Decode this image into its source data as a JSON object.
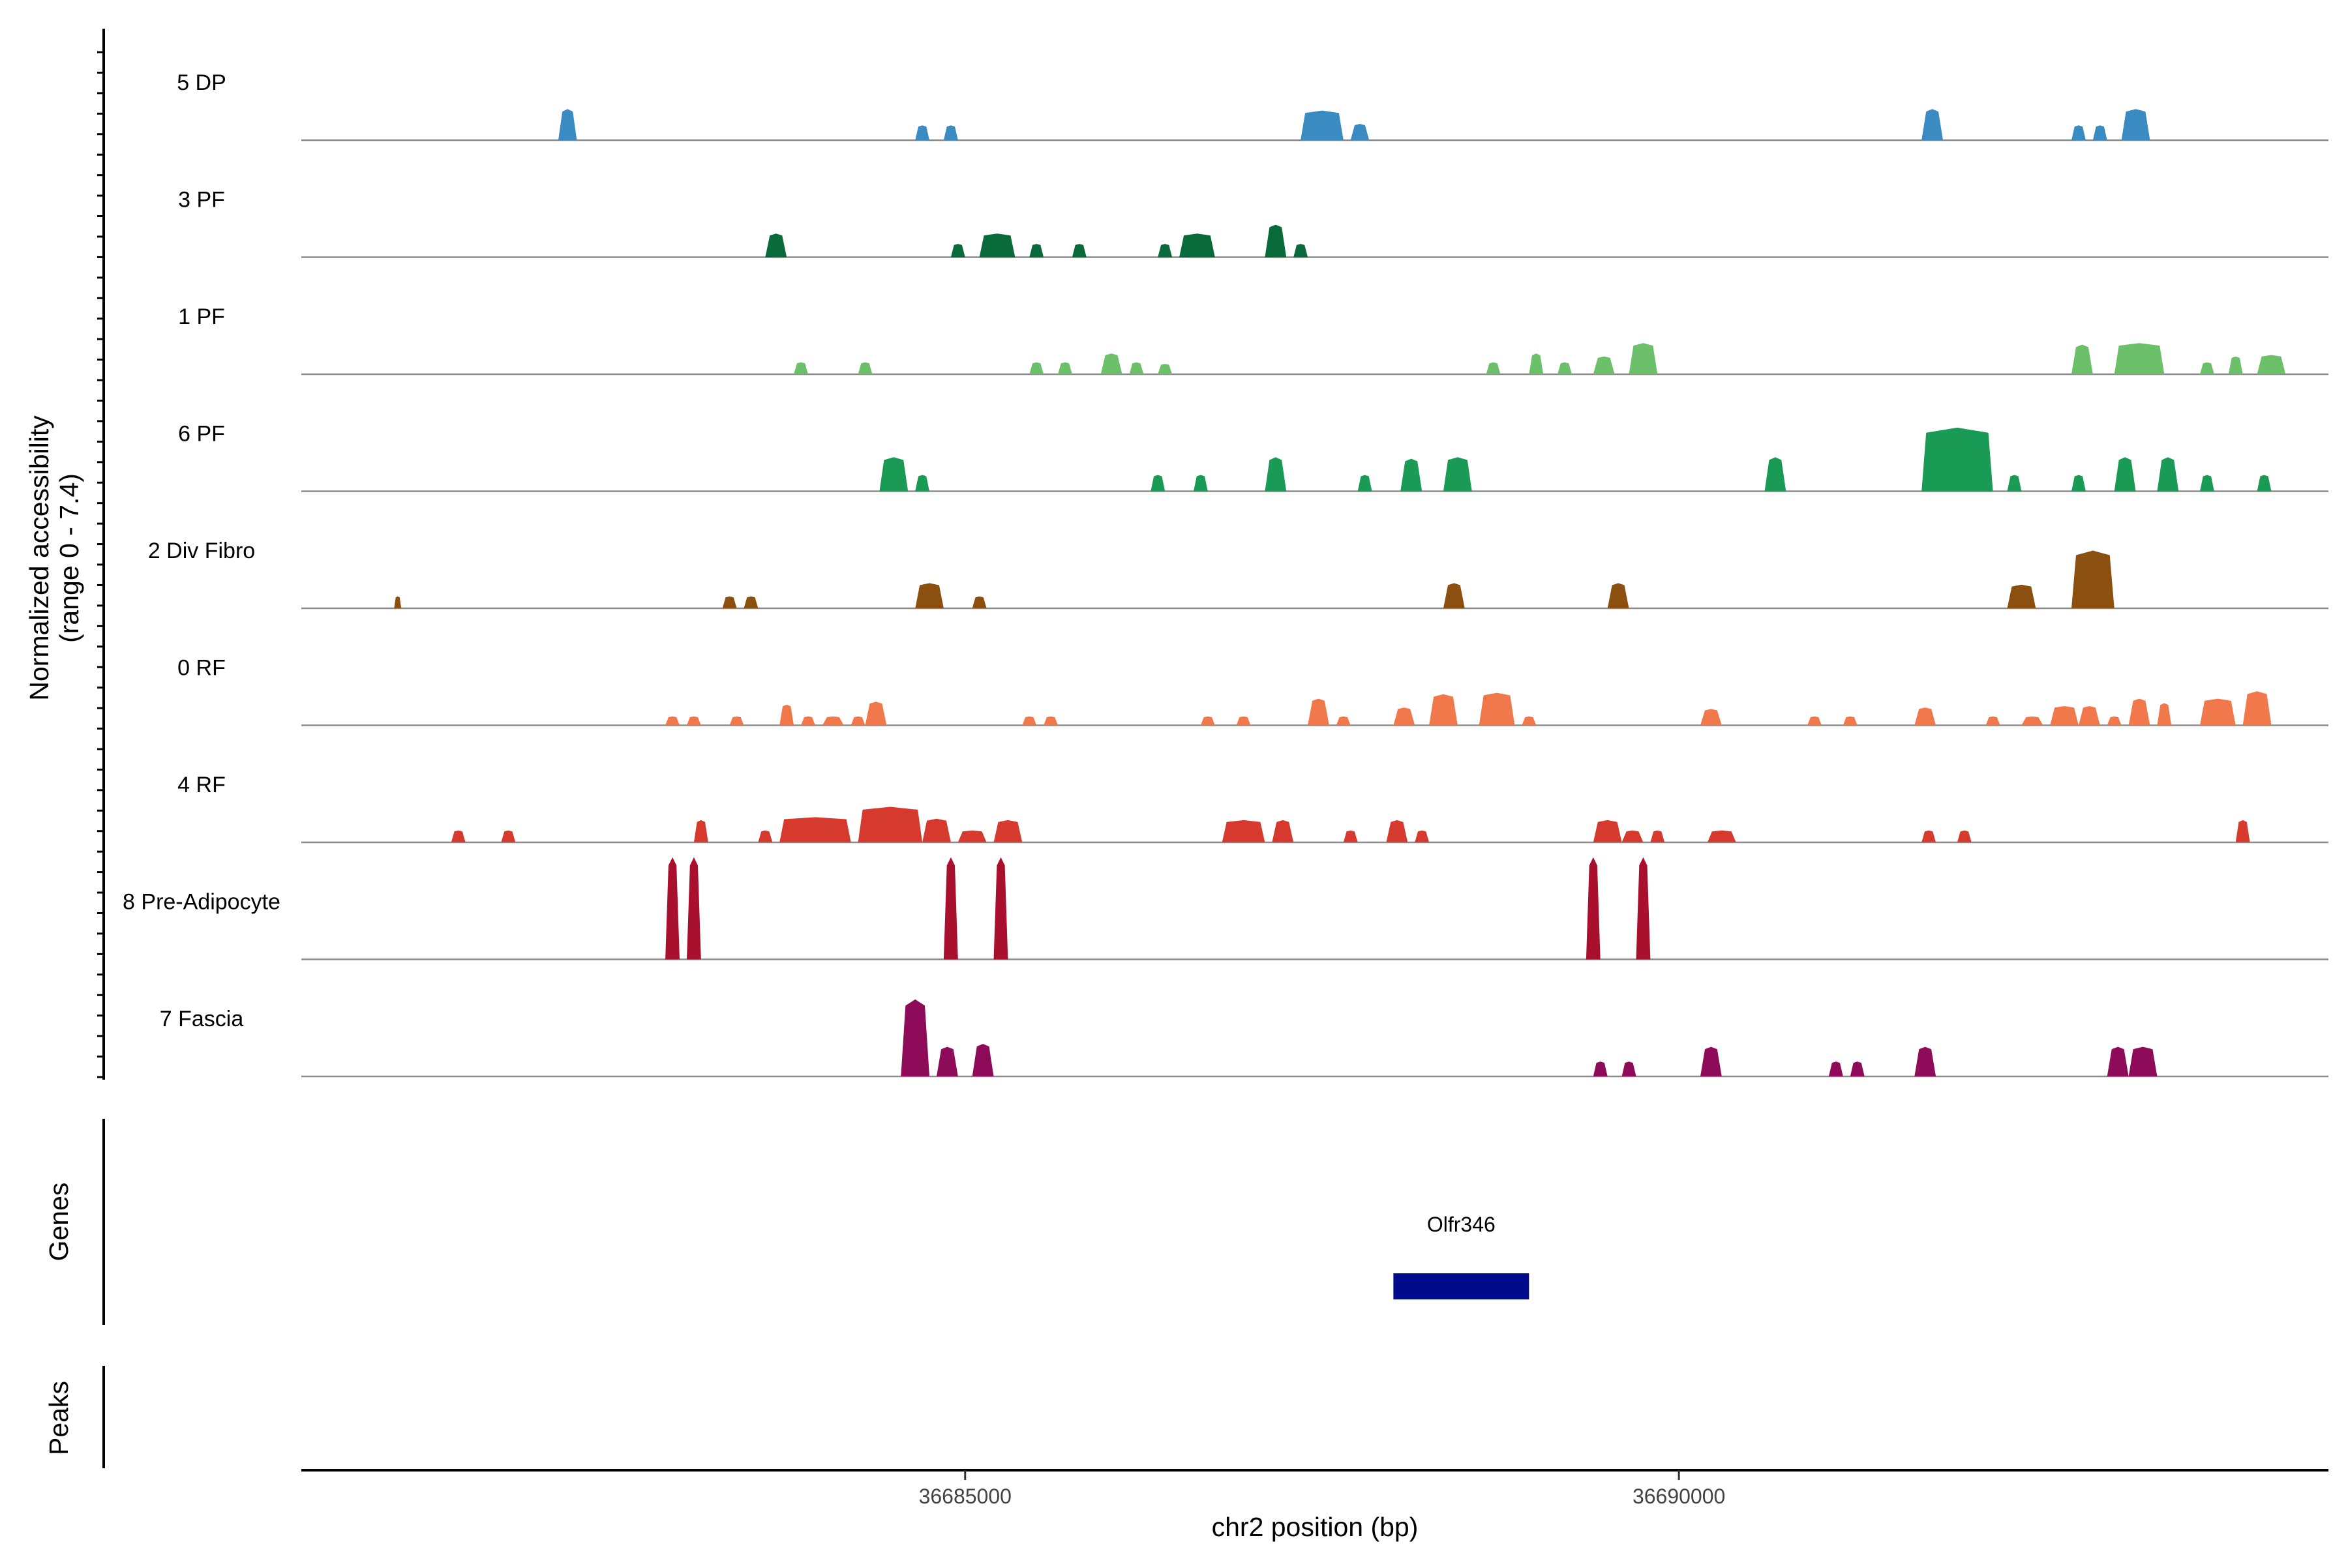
{
  "chart_data": {
    "type": "coverage",
    "title": "",
    "xlabel": "chr2 position (bp)",
    "ylabel_line1": "Normalized accessibility",
    "ylabel_line2": "(range 0 - 7.4)",
    "y_range": [
      0,
      7.4
    ],
    "xlim": [
      36680350,
      36694550
    ],
    "x_ticks": [
      {
        "value": 36685000,
        "label": "36685000"
      },
      {
        "value": 36690000,
        "label": "36690000"
      }
    ],
    "tracks": [
      {
        "name": "5 DP",
        "color": "#3a8bc2",
        "peaks": [
          {
            "start": 36682150,
            "end": 36682280,
            "height": 2.1
          },
          {
            "start": 36684650,
            "end": 36684750,
            "height": 1.0
          },
          {
            "start": 36684850,
            "end": 36684950,
            "height": 1.0
          },
          {
            "start": 36687350,
            "end": 36687650,
            "height": 2.0
          },
          {
            "start": 36687700,
            "end": 36687830,
            "height": 1.1
          },
          {
            "start": 36691700,
            "end": 36691850,
            "height": 2.1
          },
          {
            "start": 36692750,
            "end": 36692850,
            "height": 1.0
          },
          {
            "start": 36692900,
            "end": 36693000,
            "height": 1.0
          },
          {
            "start": 36693100,
            "end": 36693300,
            "height": 2.1
          }
        ]
      },
      {
        "name": "3 PF",
        "color": "#0a6b3a",
        "peaks": [
          {
            "start": 36683600,
            "end": 36683750,
            "height": 1.6
          },
          {
            "start": 36684900,
            "end": 36685000,
            "height": 0.9
          },
          {
            "start": 36685100,
            "end": 36685350,
            "height": 1.6
          },
          {
            "start": 36685450,
            "end": 36685550,
            "height": 0.9
          },
          {
            "start": 36685750,
            "end": 36685850,
            "height": 0.9
          },
          {
            "start": 36686350,
            "end": 36686450,
            "height": 0.9
          },
          {
            "start": 36686500,
            "end": 36686750,
            "height": 1.6
          },
          {
            "start": 36687100,
            "end": 36687250,
            "height": 2.2
          },
          {
            "start": 36687300,
            "end": 36687400,
            "height": 0.9
          }
        ]
      },
      {
        "name": "1 PF",
        "color": "#6cc06a",
        "peaks": [
          {
            "start": 36683800,
            "end": 36683900,
            "height": 0.8
          },
          {
            "start": 36684250,
            "end": 36684350,
            "height": 0.8
          },
          {
            "start": 36685450,
            "end": 36685550,
            "height": 0.8
          },
          {
            "start": 36685650,
            "end": 36685750,
            "height": 0.8
          },
          {
            "start": 36685950,
            "end": 36686100,
            "height": 1.4
          },
          {
            "start": 36686150,
            "end": 36686250,
            "height": 0.8
          },
          {
            "start": 36686350,
            "end": 36686450,
            "height": 0.7
          },
          {
            "start": 36688650,
            "end": 36688750,
            "height": 0.8
          },
          {
            "start": 36688950,
            "end": 36689050,
            "height": 1.4
          },
          {
            "start": 36689150,
            "end": 36689250,
            "height": 0.8
          },
          {
            "start": 36689400,
            "end": 36689550,
            "height": 1.2
          },
          {
            "start": 36689650,
            "end": 36689850,
            "height": 2.1
          },
          {
            "start": 36692750,
            "end": 36692900,
            "height": 2.0
          },
          {
            "start": 36693050,
            "end": 36693400,
            "height": 2.1
          },
          {
            "start": 36693650,
            "end": 36693750,
            "height": 0.8
          },
          {
            "start": 36693850,
            "end": 36693950,
            "height": 1.2
          },
          {
            "start": 36694050,
            "end": 36694250,
            "height": 1.3
          }
        ]
      },
      {
        "name": "6 PF",
        "color": "#1a9b55",
        "peaks": [
          {
            "start": 36684400,
            "end": 36684600,
            "height": 2.3
          },
          {
            "start": 36684650,
            "end": 36684750,
            "height": 1.1
          },
          {
            "start": 36686300,
            "end": 36686400,
            "height": 1.1
          },
          {
            "start": 36686600,
            "end": 36686700,
            "height": 1.1
          },
          {
            "start": 36687100,
            "end": 36687250,
            "height": 2.3
          },
          {
            "start": 36687750,
            "end": 36687850,
            "height": 1.1
          },
          {
            "start": 36688050,
            "end": 36688200,
            "height": 2.2
          },
          {
            "start": 36688350,
            "end": 36688550,
            "height": 2.3
          },
          {
            "start": 36690600,
            "end": 36690750,
            "height": 2.3
          },
          {
            "start": 36691700,
            "end": 36692200,
            "height": 4.3
          },
          {
            "start": 36692300,
            "end": 36692400,
            "height": 1.1
          },
          {
            "start": 36692750,
            "end": 36692850,
            "height": 1.1
          },
          {
            "start": 36693050,
            "end": 36693200,
            "height": 2.3
          },
          {
            "start": 36693350,
            "end": 36693500,
            "height": 2.3
          },
          {
            "start": 36693650,
            "end": 36693750,
            "height": 1.1
          },
          {
            "start": 36694050,
            "end": 36694150,
            "height": 1.1
          }
        ]
      },
      {
        "name": "2 Div Fibro",
        "color": "#8b5010",
        "peaks": [
          {
            "start": 36681000,
            "end": 36681050,
            "height": 0.8
          },
          {
            "start": 36683300,
            "end": 36683400,
            "height": 0.8
          },
          {
            "start": 36683450,
            "end": 36683550,
            "height": 0.8
          },
          {
            "start": 36684650,
            "end": 36684850,
            "height": 1.7
          },
          {
            "start": 36685050,
            "end": 36685150,
            "height": 0.8
          },
          {
            "start": 36688350,
            "end": 36688500,
            "height": 1.7
          },
          {
            "start": 36689500,
            "end": 36689650,
            "height": 1.7
          },
          {
            "start": 36692300,
            "end": 36692500,
            "height": 1.6
          },
          {
            "start": 36692750,
            "end": 36693050,
            "height": 3.9
          }
        ]
      },
      {
        "name": "0 RF",
        "color": "#f0784a",
        "peaks": [
          {
            "start": 36682900,
            "end": 36683000,
            "height": 0.6
          },
          {
            "start": 36683050,
            "end": 36683150,
            "height": 0.6
          },
          {
            "start": 36683350,
            "end": 36683450,
            "height": 0.6
          },
          {
            "start": 36683700,
            "end": 36683800,
            "height": 1.4
          },
          {
            "start": 36683850,
            "end": 36683950,
            "height": 0.6
          },
          {
            "start": 36684000,
            "end": 36684150,
            "height": 0.6
          },
          {
            "start": 36684200,
            "end": 36684300,
            "height": 0.6
          },
          {
            "start": 36684300,
            "end": 36684450,
            "height": 1.6
          },
          {
            "start": 36685400,
            "end": 36685500,
            "height": 0.6
          },
          {
            "start": 36685550,
            "end": 36685650,
            "height": 0.6
          },
          {
            "start": 36686650,
            "end": 36686750,
            "height": 0.6
          },
          {
            "start": 36686900,
            "end": 36687000,
            "height": 0.6
          },
          {
            "start": 36687400,
            "end": 36687550,
            "height": 1.8
          },
          {
            "start": 36687600,
            "end": 36687700,
            "height": 0.6
          },
          {
            "start": 36688000,
            "end": 36688150,
            "height": 1.2
          },
          {
            "start": 36688250,
            "end": 36688450,
            "height": 2.1
          },
          {
            "start": 36688600,
            "end": 36688850,
            "height": 2.2
          },
          {
            "start": 36688900,
            "end": 36689000,
            "height": 0.6
          },
          {
            "start": 36690150,
            "end": 36690300,
            "height": 1.1
          },
          {
            "start": 36690900,
            "end": 36691000,
            "height": 0.6
          },
          {
            "start": 36691150,
            "end": 36691250,
            "height": 0.6
          },
          {
            "start": 36691650,
            "end": 36691800,
            "height": 1.2
          },
          {
            "start": 36692150,
            "end": 36692250,
            "height": 0.6
          },
          {
            "start": 36692400,
            "end": 36692550,
            "height": 0.6
          },
          {
            "start": 36692600,
            "end": 36692800,
            "height": 1.3
          },
          {
            "start": 36692800,
            "end": 36692950,
            "height": 1.3
          },
          {
            "start": 36693000,
            "end": 36693100,
            "height": 0.6
          },
          {
            "start": 36693150,
            "end": 36693300,
            "height": 1.8
          },
          {
            "start": 36693350,
            "end": 36693450,
            "height": 1.5
          },
          {
            "start": 36693650,
            "end": 36693900,
            "height": 1.8
          },
          {
            "start": 36693950,
            "end": 36694150,
            "height": 2.3
          }
        ]
      },
      {
        "name": "4 RF",
        "color": "#d63a2e",
        "peaks": [
          {
            "start": 36681400,
            "end": 36681500,
            "height": 0.8
          },
          {
            "start": 36681750,
            "end": 36681850,
            "height": 0.8
          },
          {
            "start": 36683100,
            "end": 36683200,
            "height": 1.5
          },
          {
            "start": 36683550,
            "end": 36683650,
            "height": 0.8
          },
          {
            "start": 36683700,
            "end": 36684200,
            "height": 1.7
          },
          {
            "start": 36684250,
            "end": 36684700,
            "height": 2.4
          },
          {
            "start": 36684700,
            "end": 36684900,
            "height": 1.6
          },
          {
            "start": 36684950,
            "end": 36685150,
            "height": 0.8
          },
          {
            "start": 36685200,
            "end": 36685400,
            "height": 1.5
          },
          {
            "start": 36686800,
            "end": 36687100,
            "height": 1.5
          },
          {
            "start": 36687150,
            "end": 36687300,
            "height": 1.5
          },
          {
            "start": 36687650,
            "end": 36687750,
            "height": 0.8
          },
          {
            "start": 36687950,
            "end": 36688100,
            "height": 1.5
          },
          {
            "start": 36688150,
            "end": 36688250,
            "height": 0.8
          },
          {
            "start": 36689400,
            "end": 36689600,
            "height": 1.5
          },
          {
            "start": 36689600,
            "end": 36689750,
            "height": 0.8
          },
          {
            "start": 36689800,
            "end": 36689900,
            "height": 0.8
          },
          {
            "start": 36690200,
            "end": 36690400,
            "height": 0.8
          },
          {
            "start": 36691700,
            "end": 36691800,
            "height": 0.8
          },
          {
            "start": 36691950,
            "end": 36692050,
            "height": 0.8
          },
          {
            "start": 36693900,
            "end": 36694000,
            "height": 1.5
          }
        ]
      },
      {
        "name": "8 Pre-Adipocyte",
        "color": "#a8102e",
        "peaks": [
          {
            "start": 36682900,
            "end": 36683000,
            "height": 6.9
          },
          {
            "start": 36683050,
            "end": 36683150,
            "height": 6.9
          },
          {
            "start": 36684850,
            "end": 36684950,
            "height": 6.9
          },
          {
            "start": 36685200,
            "end": 36685300,
            "height": 6.9
          },
          {
            "start": 36689350,
            "end": 36689450,
            "height": 6.9
          },
          {
            "start": 36689700,
            "end": 36689800,
            "height": 6.9
          }
        ]
      },
      {
        "name": "7 Fascia",
        "color": "#8e0b5a",
        "peaks": [
          {
            "start": 36684550,
            "end": 36684750,
            "height": 5.2
          },
          {
            "start": 36684800,
            "end": 36684950,
            "height": 2.0
          },
          {
            "start": 36685050,
            "end": 36685200,
            "height": 2.2
          },
          {
            "start": 36689400,
            "end": 36689500,
            "height": 1.0
          },
          {
            "start": 36689600,
            "end": 36689700,
            "height": 1.0
          },
          {
            "start": 36690150,
            "end": 36690300,
            "height": 2.0
          },
          {
            "start": 36691050,
            "end": 36691150,
            "height": 1.0
          },
          {
            "start": 36691200,
            "end": 36691300,
            "height": 1.0
          },
          {
            "start": 36691650,
            "end": 36691800,
            "height": 2.0
          },
          {
            "start": 36693000,
            "end": 36693150,
            "height": 2.0
          },
          {
            "start": 36693150,
            "end": 36693350,
            "height": 2.0
          }
        ]
      }
    ],
    "genes_label": "Genes",
    "peaks_label": "Peaks",
    "genes": [
      {
        "name": "Olfr346",
        "start": 36688000,
        "end": 36688950,
        "color": "#000b8c"
      }
    ]
  }
}
